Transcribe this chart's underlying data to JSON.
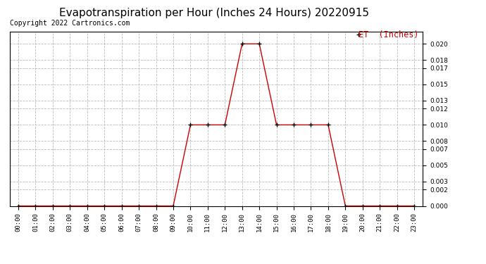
{
  "title": "Evapotranspiration per Hour (Inches 24 Hours) 20220915",
  "copyright": "Copyright 2022 Cartronics.com",
  "legend_label": "ET  (Inches)",
  "line_color": "#cc0000",
  "marker": "+",
  "marker_color": "#000000",
  "background_color": "#ffffff",
  "grid_color": "#bbbbbb",
  "hours": [
    0,
    1,
    2,
    3,
    4,
    5,
    6,
    7,
    8,
    9,
    10,
    11,
    12,
    13,
    14,
    15,
    16,
    17,
    18,
    19,
    20,
    21,
    22,
    23
  ],
  "values": [
    0.0,
    0.0,
    0.0,
    0.0,
    0.0,
    0.0,
    0.0,
    0.0,
    0.0,
    0.0,
    0.01,
    0.01,
    0.01,
    0.02,
    0.02,
    0.01,
    0.01,
    0.01,
    0.01,
    0.0,
    0.0,
    0.0,
    0.0,
    0.0
  ],
  "ylim": [
    0.0,
    0.0215
  ],
  "yticks": [
    0.0,
    0.002,
    0.003,
    0.005,
    0.007,
    0.008,
    0.01,
    0.012,
    0.013,
    0.015,
    0.017,
    0.018,
    0.02
  ],
  "title_fontsize": 11,
  "copyright_fontsize": 7,
  "legend_fontsize": 8.5,
  "tick_fontsize": 6.5
}
